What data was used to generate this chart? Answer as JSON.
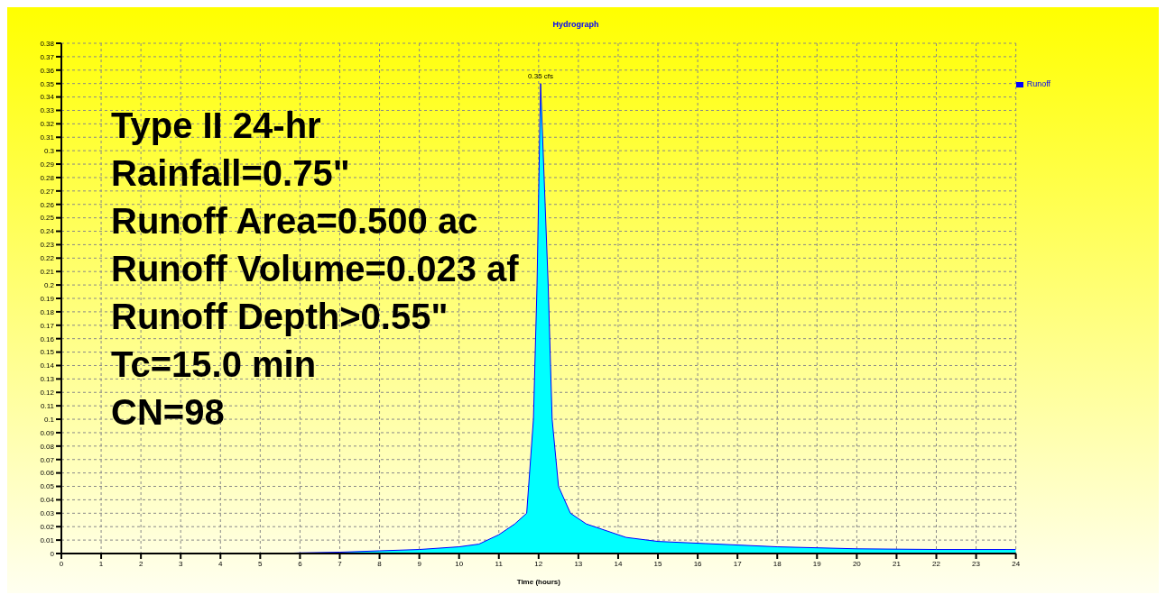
{
  "chart_data": {
    "type": "area",
    "title": "Hydrograph",
    "xlabel": "Time (hours)",
    "x": [
      0,
      5.5,
      6,
      7,
      8,
      9,
      10,
      10.5,
      11,
      11.4,
      11.7,
      11.87,
      11.96,
      12.05,
      12.24,
      12.34,
      12.5,
      12.8,
      13.2,
      14.2,
      15,
      16.2,
      18,
      20,
      22,
      24
    ],
    "series": [
      {
        "name": "Runoff",
        "color": "#00ffff",
        "values": [
          0,
          0,
          0.0005,
          0.001,
          0.002,
          0.003,
          0.005,
          0.007,
          0.014,
          0.022,
          0.03,
          0.1,
          0.2,
          0.35,
          0.2,
          0.1,
          0.05,
          0.03,
          0.022,
          0.012,
          0.009,
          0.0074,
          0.005,
          0.0035,
          0.003,
          0.003
        ]
      }
    ],
    "xlim": [
      0,
      24
    ],
    "xticks": [
      0,
      1,
      2,
      3,
      4,
      5,
      6,
      7,
      8,
      9,
      10,
      11,
      12,
      13,
      14,
      15,
      16,
      17,
      18,
      19,
      20,
      21,
      22,
      23,
      24
    ],
    "ylim": [
      0,
      0.38
    ],
    "yticks": [
      0,
      0.01,
      0.02,
      0.03,
      0.04,
      0.05,
      0.06,
      0.07,
      0.08,
      0.09,
      0.1,
      0.11,
      0.12,
      0.13,
      0.14,
      0.15,
      0.16,
      0.17,
      0.18,
      0.19,
      0.2,
      0.21,
      0.22,
      0.23,
      0.24,
      0.25,
      0.26,
      0.27,
      0.28,
      0.29,
      0.3,
      0.31,
      0.32,
      0.33,
      0.34,
      0.35,
      0.36,
      0.37,
      0.38
    ],
    "grid": true,
    "legend": "top right",
    "marker": "none",
    "annotations": [
      {
        "text": "0.35 cfs",
        "x": 12.05,
        "y": 0.35
      },
      "Type II 24-hr",
      "Rainfall=0.75\"",
      "Runoff Area=0.500 ac",
      "Runoff Volume=0.023 af",
      "Runoff Depth>0.55\"",
      "Tc=15.0 min",
      "CN=98"
    ]
  }
}
